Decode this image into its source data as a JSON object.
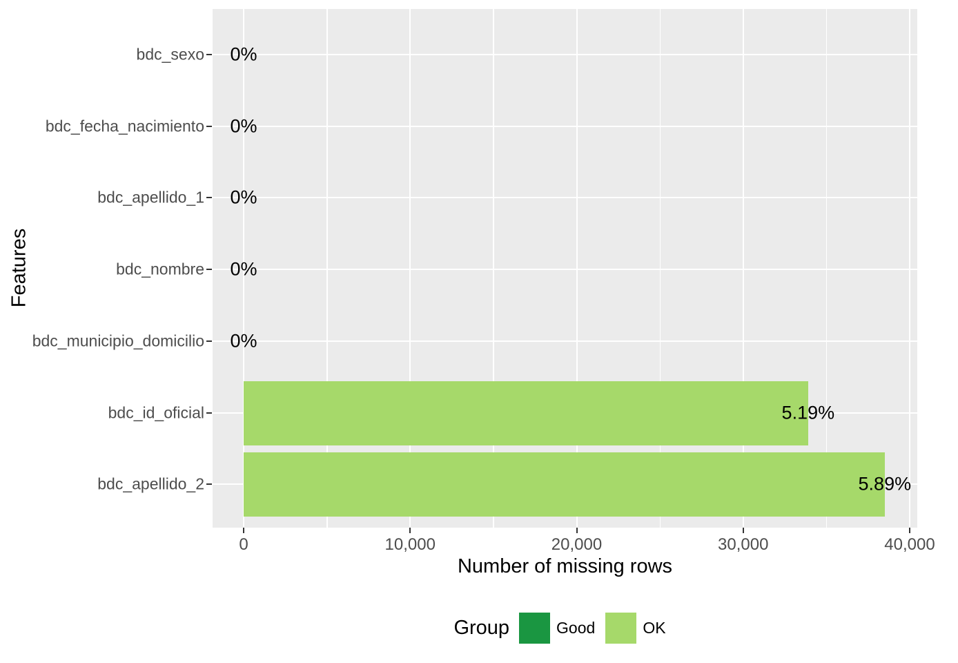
{
  "figure": {
    "background": "#FFFFFF",
    "panel_background": "#EBEBEB",
    "grid_color": "#FFFFFF",
    "axis_text_color": "#4D4D4D",
    "axis_title_color": "#000000",
    "tick_mark_color": "#333333"
  },
  "chart_data": {
    "type": "bar",
    "orientation": "horizontal",
    "title": "",
    "xlabel": "Number of missing rows",
    "ylabel": "Features",
    "xlim": [
      0,
      40000
    ],
    "x_major_ticks": [
      0,
      10000,
      20000,
      30000,
      40000
    ],
    "x_tick_labels": [
      "0",
      "10,000",
      "20,000",
      "30,000",
      "40,000"
    ],
    "x_minor_ticks": [
      5000,
      15000,
      25000,
      35000
    ],
    "grid": true,
    "bar_width_fraction": 0.9,
    "rows": [
      {
        "feature": "bdc_sexo",
        "missing": 0,
        "pct_label": "0%",
        "group": "Good"
      },
      {
        "feature": "bdc_fecha_nacimiento",
        "missing": 0,
        "pct_label": "0%",
        "group": "Good"
      },
      {
        "feature": "bdc_apellido_1",
        "missing": 0,
        "pct_label": "0%",
        "group": "Good"
      },
      {
        "feature": "bdc_nombre",
        "missing": 0,
        "pct_label": "0%",
        "group": "Good"
      },
      {
        "feature": "bdc_municipio_domicilio",
        "missing": 0,
        "pct_label": "0%",
        "group": "Good"
      },
      {
        "feature": "bdc_id_oficial",
        "missing": 33900,
        "pct_label": "5.19%",
        "group": "OK"
      },
      {
        "feature": "bdc_apellido_2",
        "missing": 38500,
        "pct_label": "5.89%",
        "group": "OK"
      }
    ],
    "legend": {
      "title": "Group",
      "position": "bottom",
      "entries": [
        {
          "label": "Good",
          "color": "#1A9641"
        },
        {
          "label": "OK",
          "color": "#A6D96A"
        }
      ]
    }
  }
}
